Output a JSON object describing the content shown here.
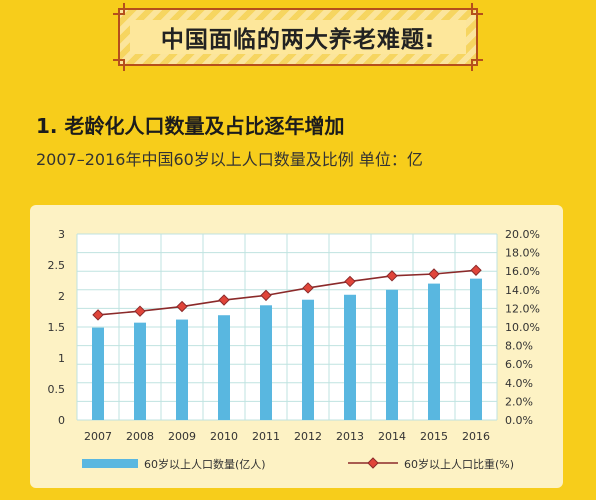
{
  "header": {
    "banner_title": "中国面临的两大养老难题:",
    "section_title": "1.  老龄化人口数量及占比逐年增加",
    "subtitle": "2007–2016年中国60岁以上人口数量及比例   单位：亿"
  },
  "colors": {
    "background": "#f7cd1b",
    "bar": "#59b7e0",
    "line": "#8b2a2a",
    "marker": "#e0453a"
  },
  "chart_data": {
    "type": "bar",
    "categories": [
      "2007",
      "2008",
      "2009",
      "2010",
      "2011",
      "2012",
      "2013",
      "2014",
      "2015",
      "2016"
    ],
    "series": [
      {
        "name": "60岁以上人口数量(亿人)",
        "type": "bar",
        "axis": "left",
        "values": [
          1.49,
          1.57,
          1.62,
          1.69,
          1.85,
          1.94,
          2.02,
          2.1,
          2.2,
          2.28
        ]
      },
      {
        "name": "60岁以上人口比重(%)",
        "type": "line",
        "axis": "right",
        "values": [
          11.3,
          11.7,
          12.2,
          12.9,
          13.4,
          14.2,
          14.9,
          15.5,
          15.7,
          16.1
        ]
      }
    ],
    "ylim": [
      0,
      3
    ],
    "yticks": [
      "0",
      "0.5",
      "1",
      "1.5",
      "2",
      "2.5",
      "3"
    ],
    "y2lim": [
      0,
      20
    ],
    "y2ticks": [
      "0.0%",
      "2.0%",
      "4.0%",
      "6.0%",
      "8.0%",
      "10.0%",
      "12.0%",
      "14.0%",
      "16.0%",
      "18.0%",
      "20.0%"
    ],
    "grid": true,
    "legend_position": "bottom"
  }
}
